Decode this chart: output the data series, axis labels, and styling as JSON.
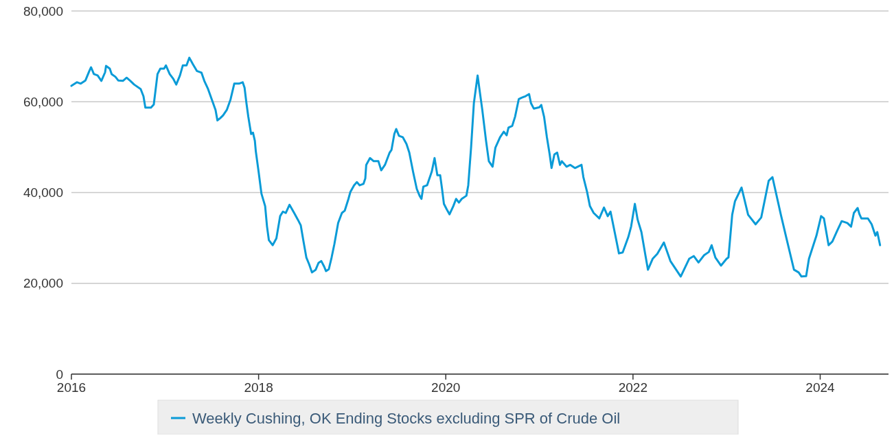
{
  "chart_data": {
    "type": "line",
    "xlim": [
      2016,
      2024.73
    ],
    "xticks": [
      2016,
      2018,
      2020,
      2022,
      2024
    ],
    "ylim": [
      0,
      80000
    ],
    "yticks": [
      {
        "value": 0,
        "label": "0"
      },
      {
        "value": 20000,
        "label": "20,000"
      },
      {
        "value": 40000,
        "label": "40,000"
      },
      {
        "value": 60000,
        "label": "60,000"
      },
      {
        "value": 80000,
        "label": "80,000"
      }
    ],
    "grid": "y",
    "legend": "bottom",
    "line_style": "solid",
    "marker": "none",
    "series": [
      {
        "name": "Weekly Cushing, OK Ending Stocks excluding SPR of Crude Oil",
        "color": "#0a9bd7",
        "x": [
          2016.0,
          2016.06,
          2016.1,
          2016.15,
          2016.19,
          2016.21,
          2016.24,
          2016.28,
          2016.32,
          2016.36,
          2016.37,
          2016.41,
          2016.43,
          2016.47,
          2016.5,
          2016.55,
          2016.59,
          2016.63,
          2016.67,
          2016.74,
          2016.77,
          2016.79,
          2016.85,
          2016.88,
          2016.92,
          2016.95,
          2016.99,
          2017.01,
          2017.05,
          2017.09,
          2017.12,
          2017.16,
          2017.19,
          2017.23,
          2017.26,
          2017.3,
          2017.34,
          2017.39,
          2017.42,
          2017.46,
          2017.5,
          2017.54,
          2017.56,
          2017.59,
          2017.62,
          2017.66,
          2017.7,
          2017.74,
          2017.79,
          2017.83,
          2017.85,
          2017.87,
          2017.89,
          2017.92,
          2017.94,
          2017.96,
          2017.97,
          2018.0,
          2018.03,
          2018.07,
          2018.09,
          2018.11,
          2018.15,
          2018.19,
          2018.23,
          2018.26,
          2018.29,
          2018.33,
          2018.38,
          2018.42,
          2018.45,
          2018.48,
          2018.51,
          2018.54,
          2018.57,
          2018.61,
          2018.64,
          2018.67,
          2018.7,
          2018.72,
          2018.75,
          2018.78,
          2018.81,
          2018.85,
          2018.89,
          2018.92,
          2018.96,
          2018.98,
          2019.02,
          2019.05,
          2019.08,
          2019.12,
          2019.14,
          2019.15,
          2019.19,
          2019.23,
          2019.28,
          2019.31,
          2019.35,
          2019.4,
          2019.42,
          2019.45,
          2019.47,
          2019.5,
          2019.54,
          2019.58,
          2019.61,
          2019.65,
          2019.69,
          2019.72,
          2019.74,
          2019.76,
          2019.8,
          2019.85,
          2019.88,
          2019.91,
          2019.94,
          2019.96,
          2019.98,
          2020.01,
          2020.04,
          2020.08,
          2020.11,
          2020.14,
          2020.17,
          2020.22,
          2020.24,
          2020.27,
          2020.3,
          2020.34,
          2020.36,
          2020.39,
          2020.43,
          2020.46,
          2020.5,
          2020.53,
          2020.58,
          2020.62,
          2020.65,
          2020.67,
          2020.71,
          2020.74,
          2020.78,
          2020.81,
          2020.85,
          2020.89,
          2020.91,
          2020.94,
          2021.0,
          2021.02,
          2021.05,
          2021.08,
          2021.11,
          2021.13,
          2021.16,
          2021.19,
          2021.22,
          2021.24,
          2021.29,
          2021.33,
          2021.38,
          2021.45,
          2021.47,
          2021.51,
          2021.54,
          2021.58,
          2021.64,
          2021.69,
          2021.73,
          2021.76,
          2021.81,
          2021.85,
          2021.89,
          2021.95,
          2021.98,
          2022.02,
          2022.05,
          2022.09,
          2022.13,
          2022.16,
          2022.21,
          2022.26,
          2022.33,
          2022.4,
          2022.51,
          2022.6,
          2022.65,
          2022.7,
          2022.76,
          2022.81,
          2022.84,
          2022.88,
          2022.94,
          2023.0,
          2023.02,
          2023.06,
          2023.09,
          2023.16,
          2023.23,
          2023.31,
          2023.37,
          2023.45,
          2023.49,
          2023.58,
          2023.64,
          2023.72,
          2023.77,
          2023.8,
          2023.85,
          2023.88,
          2023.96,
          2024.01,
          2024.04,
          2024.09,
          2024.13,
          2024.18,
          2024.23,
          2024.29,
          2024.33,
          2024.36,
          2024.4,
          2024.42,
          2024.44,
          2024.51,
          2024.55,
          2024.59,
          2024.61,
          2024.64
        ],
        "values": [
          63500,
          64300,
          64000,
          64700,
          66700,
          67600,
          66100,
          65800,
          64600,
          66500,
          67900,
          67300,
          66100,
          65500,
          64700,
          64600,
          65300,
          64600,
          63800,
          62800,
          61200,
          58700,
          58700,
          59400,
          66100,
          67300,
          67300,
          68000,
          66100,
          65000,
          63800,
          65800,
          68000,
          68000,
          69700,
          68200,
          66800,
          66400,
          64600,
          62800,
          60500,
          58200,
          55900,
          56400,
          57000,
          58200,
          60500,
          64000,
          64000,
          64300,
          63100,
          59700,
          56700,
          52900,
          53200,
          51400,
          49100,
          44600,
          39800,
          37000,
          32500,
          29500,
          28400,
          29900,
          34800,
          35800,
          35500,
          37300,
          35500,
          34000,
          32800,
          29200,
          25700,
          24200,
          22400,
          23000,
          24500,
          24900,
          23700,
          22700,
          23100,
          25700,
          28700,
          33300,
          35500,
          36000,
          38600,
          40100,
          41600,
          42300,
          41600,
          41900,
          43100,
          46100,
          47600,
          46900,
          46900,
          44900,
          46100,
          48800,
          49400,
          52900,
          54000,
          52500,
          52200,
          50700,
          48800,
          44600,
          40800,
          39300,
          38600,
          41300,
          41600,
          44600,
          47600,
          43800,
          43800,
          40800,
          37500,
          36300,
          35200,
          37000,
          38600,
          37800,
          38600,
          39300,
          41600,
          49900,
          59700,
          65800,
          62700,
          58200,
          51400,
          46900,
          45700,
          49900,
          52200,
          53400,
          52600,
          54300,
          54700,
          56700,
          60600,
          60900,
          61200,
          61700,
          59700,
          58500,
          58800,
          59300,
          56700,
          52200,
          48400,
          45400,
          48400,
          48800,
          46100,
          46900,
          45700,
          46100,
          45400,
          46100,
          43400,
          40100,
          37000,
          35500,
          34300,
          36700,
          34800,
          35800,
          30700,
          26600,
          26800,
          30200,
          32500,
          37500,
          34000,
          31300,
          26500,
          23000,
          25400,
          26500,
          29000,
          24900,
          21500,
          25400,
          26000,
          24600,
          26200,
          26900,
          28400,
          25700,
          23900,
          25400,
          25700,
          35100,
          38100,
          41100,
          35100,
          33000,
          34500,
          42600,
          43400,
          35100,
          29900,
          23000,
          22400,
          21500,
          21600,
          25400,
          30500,
          34800,
          34300,
          28400,
          29200,
          31500,
          33700,
          33300,
          32500,
          35500,
          36600,
          35200,
          34300,
          34300,
          33000,
          30500,
          31300,
          28400
        ]
      }
    ]
  }
}
